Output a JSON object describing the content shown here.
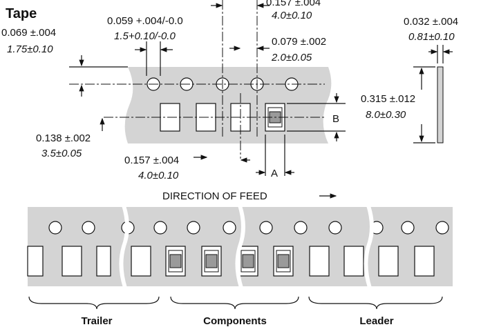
{
  "title": "Tape",
  "dimensions": {
    "sprocket_offset": {
      "imperial": "0.069 ±.004",
      "metric": "1.75±0.10"
    },
    "hole_diameter": {
      "imperial": "0.059 +.004/-0.0",
      "metric": "1.5+0.10/-0.0"
    },
    "hole_pitch": {
      "imperial": "0.157 ±.004",
      "metric": "4.0±0.10"
    },
    "hole_to_pocket": {
      "imperial": "0.079 ±.002",
      "metric": "2.0±0.05"
    },
    "thickness": {
      "imperial": "0.032 ±.004",
      "metric": "0.81±0.10"
    },
    "width": {
      "imperial": "0.315 ±.012",
      "metric": "8.0±0.30"
    },
    "pocket_center": {
      "imperial": "0.138 ±.002",
      "metric": "3.5±0.05"
    },
    "pocket_pitch": {
      "imperial": "0.157 ±.004",
      "metric": "4.0±0.10"
    }
  },
  "labels": {
    "a": "A",
    "b": "B",
    "feed": "DIRECTION OF FEED"
  },
  "sections": [
    "Trailer",
    "Components",
    "Leader"
  ]
}
